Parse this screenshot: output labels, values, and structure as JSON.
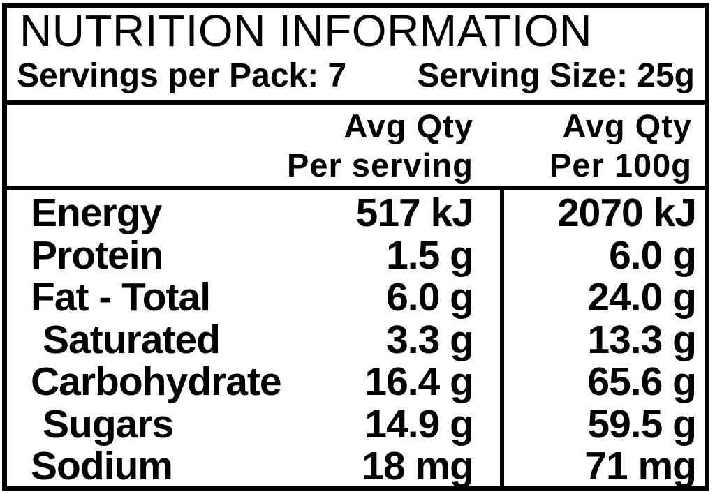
{
  "label": {
    "title": "NUTRITION INFORMATION",
    "servings_per_pack": "Servings per Pack: 7",
    "serving_size": "Serving Size: 25g",
    "column_headers": {
      "per_serving": {
        "line1": "Avg Qty",
        "line2": "Per serving"
      },
      "per_100g": {
        "line1": "Avg Qty",
        "line2": "Per 100g"
      }
    },
    "rows": [
      {
        "nutrient": "Energy",
        "per_serving": "517 kJ",
        "per_100g": "2070 kJ",
        "indent": false
      },
      {
        "nutrient": "Protein",
        "per_serving": "1.5 g",
        "per_100g": "6.0 g",
        "indent": false
      },
      {
        "nutrient": "Fat - Total",
        "per_serving": "6.0 g",
        "per_100g": "24.0 g",
        "indent": false
      },
      {
        "nutrient": "Saturated",
        "per_serving": "3.3 g",
        "per_100g": "13.3 g",
        "indent": true
      },
      {
        "nutrient": "Carbohydrate",
        "per_serving": "16.4 g",
        "per_100g": "65.6 g",
        "indent": false
      },
      {
        "nutrient": "Sugars",
        "per_serving": "14.9 g",
        "per_100g": "59.5 g",
        "indent": true
      },
      {
        "nutrient": "Sodium",
        "per_serving": "18 mg",
        "per_100g": "71 mg",
        "indent": false
      }
    ],
    "colors": {
      "background": "#ffffff",
      "text": "#000000",
      "border": "#000000"
    }
  }
}
